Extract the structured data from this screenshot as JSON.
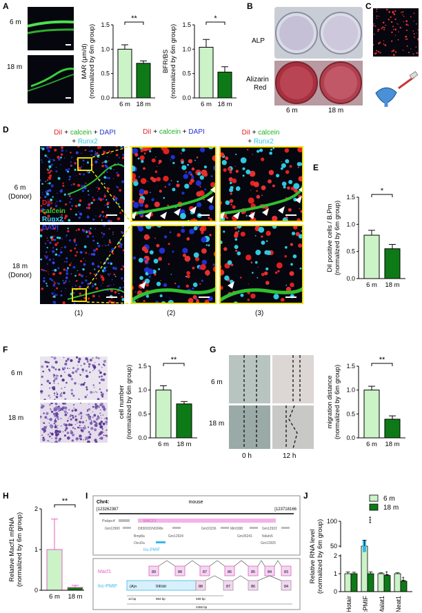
{
  "panels": {
    "A": "A",
    "B": "B",
    "C": "C",
    "D": "D",
    "E": "E",
    "F": "F",
    "G": "G",
    "H": "H",
    "I": "I",
    "J": "J"
  },
  "groups": {
    "young": "6 m",
    "old": "18 m"
  },
  "sig": {
    "two": "**",
    "one": "*",
    "three": "***"
  },
  "panelA": {
    "row1": "6 m",
    "row2": "18 m"
  },
  "panelB": {
    "alp": "ALP",
    "alizarin1": "Alizarin",
    "alizarin2": "Red",
    "x1": "6 m",
    "x2": "18 m"
  },
  "panelD": {
    "col1_line1": "DiI + calcein + DAPI",
    "col1_line2": "+ Runx2",
    "col2": "DiI + calcein + DAPI",
    "col3_line1": "DiI + calcein",
    "col3_line2": "Runx2",
    "row1": "6 m",
    "row1b": "(Donor)",
    "row2": "18 m",
    "row2b": "(Donor)",
    "legend": [
      "DiI",
      "calcein",
      "Runx2",
      "DAPI"
    ],
    "cols": [
      "(1)",
      "(2)",
      "(3)"
    ]
  },
  "panelG": {
    "t0": "0 h",
    "t12": "12 h",
    "row1": "6 m",
    "row2": "18 m"
  },
  "panelF": {
    "row1": "6 m",
    "row2": "18 m"
  },
  "panelI": {
    "chr": "Chr4:",
    "species": "mouse",
    "start": "[123262387",
    "end": "[123718166",
    "genes_top": [
      "Pabpc4",
      "MACF1"
    ],
    "genes_row2": [
      "Gm12900",
      "D830031N03Rik",
      "Gm31156",
      "Mir6398",
      "Gm12922"
    ],
    "genes_row3": [
      "Bmp8a",
      "Gm12924",
      "Gm35241",
      "Ndufs5"
    ],
    "genes_row4": [
      "Oxct2a",
      "Gm12925"
    ],
    "lnc": "lnc-PMIF",
    "macf1": "Macf1",
    "lncpmif": "lnc-PMIF",
    "polyA": "(A)n",
    "intron": "Intron",
    "exons_top": [
      "89",
      "88",
      "87",
      "86",
      "85",
      "84",
      "83"
    ],
    "exons_bot": [
      "88",
      "87",
      "86",
      "84"
    ],
    "scale": [
      "12 bp",
      "984 bp",
      "459 bp",
      "2455 bp"
    ]
  },
  "colors": {
    "light": "#ccf2c8",
    "dark": "#0e7a17",
    "pinkbar": "#f0f5e8",
    "magenta": "#e060c0",
    "lnc": "#38b8e8"
  },
  "chart_data": [
    {
      "type": "bar",
      "panel": "A",
      "categories": [
        "6 m",
        "18 m"
      ],
      "values": [
        1.0,
        0.71
      ],
      "errors": [
        0.09,
        0.05
      ],
      "ylabel": "MAR (μm/d)",
      "ylabel2": "(normalized by 6m group)",
      "ylim": [
        0,
        1.5
      ],
      "yticks": [
        "0.0",
        "0.5",
        "1.0",
        "1.5"
      ],
      "sig": "**"
    },
    {
      "type": "bar",
      "panel": "A",
      "categories": [
        "6 m",
        "18 m"
      ],
      "values": [
        1.04,
        0.53
      ],
      "errors": [
        0.16,
        0.11
      ],
      "ylabel": "BFR/BS",
      "ylabel2": "(normalized by 6m group)",
      "ylim": [
        0,
        1.5
      ],
      "yticks": [
        "0.0",
        "0.5",
        "1.0",
        "1.5"
      ],
      "sig": "*"
    },
    {
      "type": "bar",
      "panel": "E",
      "categories": [
        "6 m",
        "18 m"
      ],
      "values": [
        0.8,
        0.55
      ],
      "errors": [
        0.09,
        0.08
      ],
      "ylabel": "DiI positive cells / B.Pm",
      "ylabel2": "(normalized by 6m group)",
      "ylim": [
        0,
        1.5
      ],
      "yticks": [
        "0.0",
        "0.5",
        "1.0",
        "1.5"
      ],
      "sig": "*"
    },
    {
      "type": "bar",
      "panel": "F",
      "categories": [
        "6 m",
        "18 m"
      ],
      "values": [
        1.0,
        0.71
      ],
      "errors": [
        0.09,
        0.05
      ],
      "ylabel": "cell number",
      "ylabel2": "(normalized by 6m group)",
      "ylim": [
        0,
        1.5
      ],
      "yticks": [
        "0.0",
        "0.5",
        "1.0",
        "1.5"
      ],
      "sig": "**"
    },
    {
      "type": "bar",
      "panel": "G",
      "categories": [
        "6 m",
        "18 m"
      ],
      "values": [
        1.0,
        0.39
      ],
      "errors": [
        0.08,
        0.07
      ],
      "ylabel": "migration distance",
      "ylabel2": "(normalized by 6m group)",
      "ylim": [
        0,
        1.5
      ],
      "yticks": [
        "0.0",
        "0.5",
        "1.0",
        "1.5"
      ],
      "sig": "**"
    },
    {
      "type": "bar",
      "panel": "H",
      "categories": [
        "6 m",
        "18 m"
      ],
      "values": [
        1.0,
        0.07
      ],
      "errors": [
        0.75,
        0.05
      ],
      "ylabel": "Relative Macf1 mRNA",
      "ylabel2": "(normalized by 6m group)",
      "ylim": [
        0,
        2
      ],
      "yticks": [
        "0",
        "1",
        "2"
      ],
      "sig": "**"
    },
    {
      "type": "bar",
      "panel": "J",
      "categories": [
        "Hotair",
        "lncPMIF",
        "Malat1",
        "Neat1"
      ],
      "series": [
        {
          "name": "6 m",
          "values": [
            1.0,
            50,
            1.0,
            1.0
          ],
          "errors": [
            0.1,
            12,
            0.05,
            0.05
          ]
        },
        {
          "name": "18 m",
          "values": [
            1.0,
            1.0,
            0.9,
            0.58
          ],
          "errors": [
            0.08,
            0.1,
            0.05,
            0.04
          ]
        }
      ],
      "sig_18m": [
        "",
        "***",
        "**",
        "**"
      ],
      "ylabel": "Relative RNA level",
      "ylabel2": "(normalized by 6m group)",
      "yticks": [
        "0",
        "1",
        "2",
        "50",
        "100"
      ]
    }
  ]
}
